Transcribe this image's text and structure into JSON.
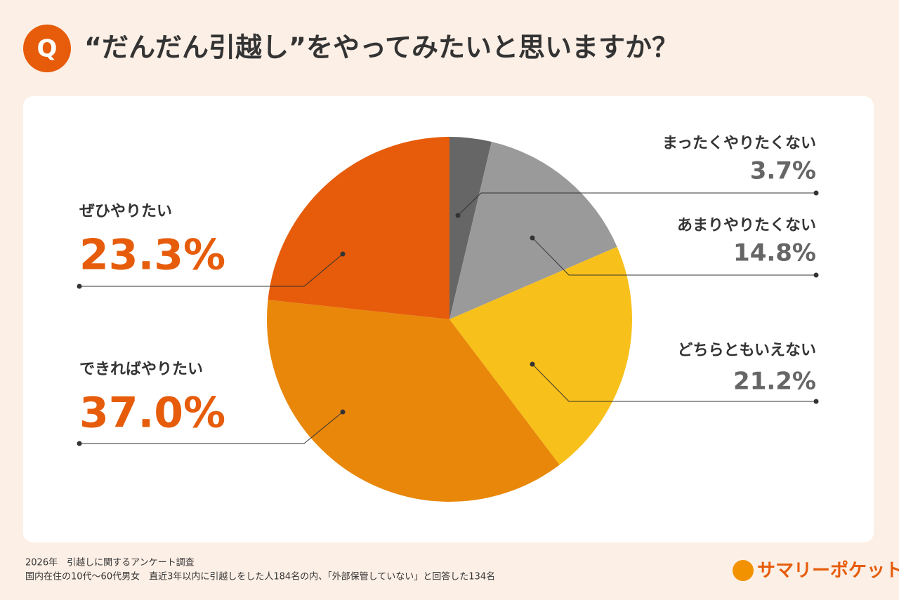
{
  "badge": "Q",
  "chart_data": {
    "type": "pie",
    "title": "“だんだん引越し”をやってみたいと思いますか？",
    "categories": [
      "まったくやりたくない",
      "あまりやりたくない",
      "どちらともいえない",
      "できればやりたい",
      "ぜひやりたい"
    ],
    "values": [
      3.7,
      14.8,
      21.2,
      37.0,
      23.3
    ],
    "value_labels": [
      "3.7%",
      "14.8%",
      "21.2%",
      "37.0%",
      "23.3%"
    ],
    "colors": [
      "#666666",
      "#9a9a9a",
      "#f8c01a",
      "#e8870a",
      "#e65c0a"
    ]
  },
  "notes": [
    "2026年　引越しに関するアンケート調査",
    "国内在住の10代～60代男女　直近3年以内に引越しをした人184名の内、「外部保管していない」と回答した134名"
  ],
  "logo": "サマリーポケット"
}
